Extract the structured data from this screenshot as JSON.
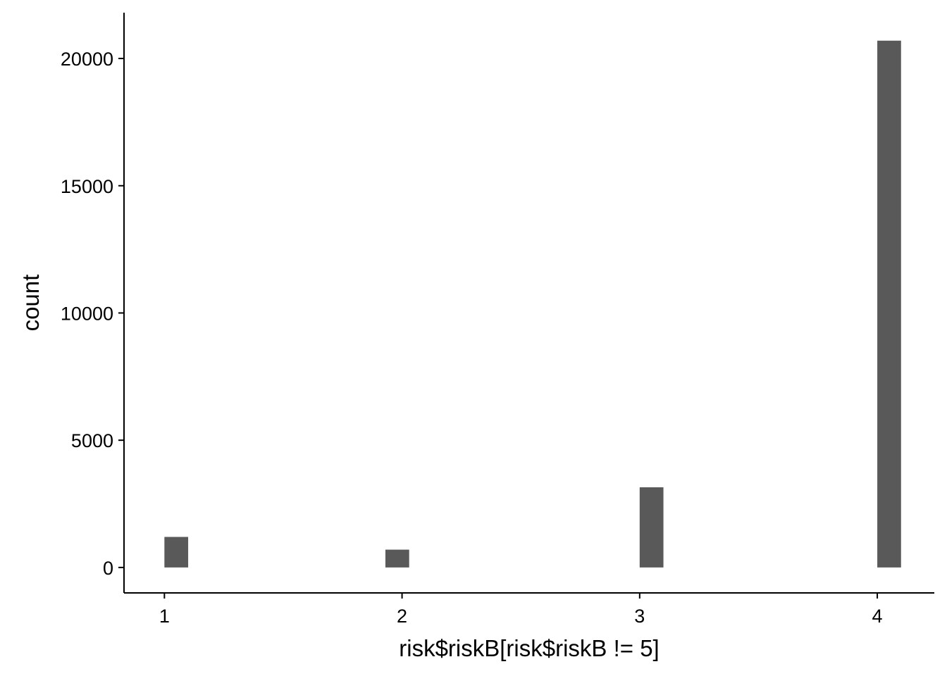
{
  "chart_data": {
    "type": "bar",
    "title": "",
    "xlabel": "risk$riskB[risk$riskB != 5]",
    "ylabel": "count",
    "x": [
      1.05,
      1.98,
      3.05,
      4.05
    ],
    "values": [
      1200,
      700,
      3150,
      20700
    ],
    "bar_width": 0.1,
    "xlim": [
      0.83,
      4.24
    ],
    "ylim": [
      -1000,
      21800
    ],
    "xticks": [
      1,
      2,
      3,
      4
    ],
    "xtick_labels": [
      "1",
      "2",
      "3",
      "4"
    ],
    "yticks": [
      0,
      5000,
      10000,
      15000,
      20000
    ],
    "ytick_labels": [
      "0",
      "5000",
      "10000",
      "15000",
      "20000"
    ],
    "bar_color": "#595959",
    "grid": false,
    "legend": "none"
  }
}
